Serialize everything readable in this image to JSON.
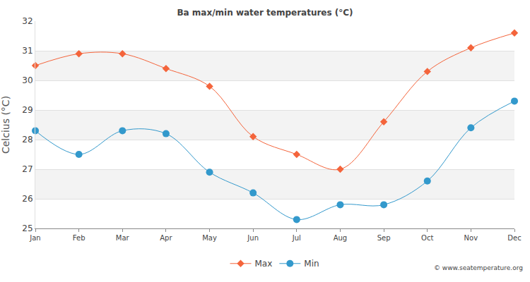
{
  "chart_data": {
    "type": "line",
    "title": "Ba max/min water temperatures (°C)",
    "y_label": "Celcius (°C)",
    "categories": [
      "Jan",
      "Feb",
      "Mar",
      "Apr",
      "May",
      "Jun",
      "Jul",
      "Aug",
      "Sep",
      "Oct",
      "Nov",
      "Dec"
    ],
    "series": [
      {
        "name": "Max",
        "color": "#f4643b",
        "marker": "diamond",
        "line_style": "solid",
        "values": [
          30.5,
          30.9,
          30.9,
          30.4,
          29.8,
          28.1,
          27.5,
          27.0,
          28.6,
          30.3,
          31.1,
          31.6
        ]
      },
      {
        "name": "Min",
        "color": "#3399cc",
        "marker": "circle",
        "line_style": "solid",
        "values": [
          28.3,
          27.5,
          28.3,
          28.2,
          26.9,
          26.2,
          25.3,
          25.8,
          25.8,
          26.6,
          28.4,
          29.3
        ]
      }
    ],
    "ylim": [
      25,
      32
    ],
    "yticks": [
      25,
      26,
      27,
      28,
      29,
      30,
      31,
      32
    ],
    "grid": true,
    "legend": "bottom",
    "annotations": [
      "© www.seatemperature.org"
    ]
  }
}
